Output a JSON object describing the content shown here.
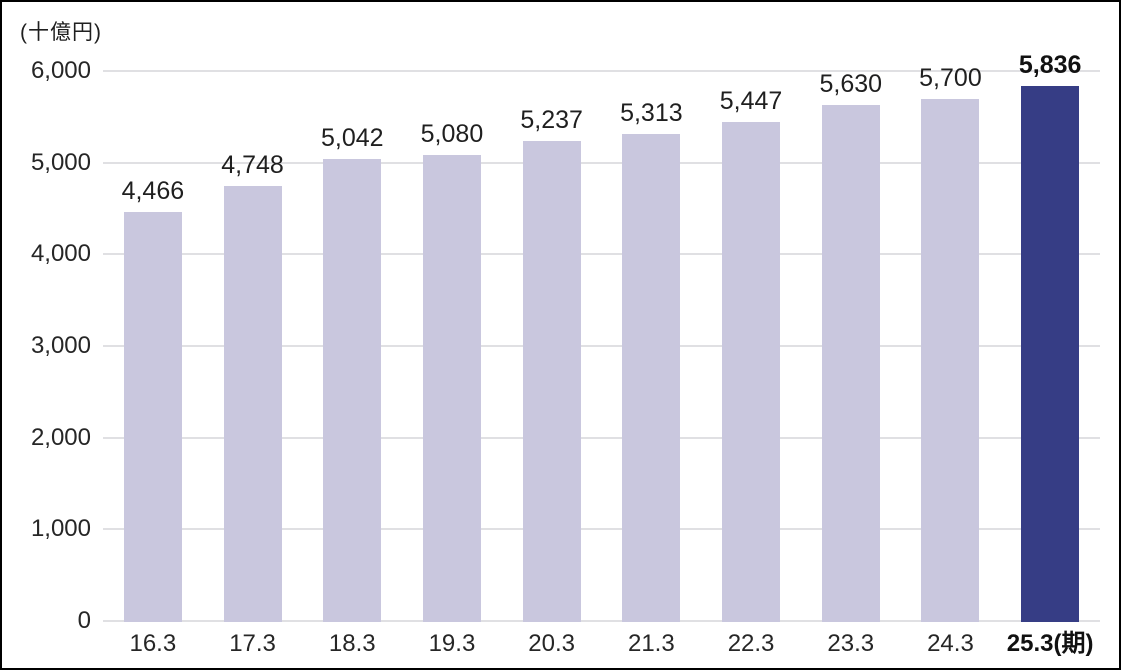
{
  "page": {
    "background_color": "#ffffff",
    "border_color": "#000000"
  },
  "chart_data": {
    "type": "bar",
    "title": "",
    "unit_label": "(十億円)",
    "xlabel": "",
    "ylabel": "十億円",
    "categories": [
      "16.3",
      "17.3",
      "18.3",
      "19.3",
      "20.3",
      "21.3",
      "22.3",
      "23.3",
      "24.3",
      "25.3(期)"
    ],
    "values": [
      4466,
      4748,
      5042,
      5080,
      5237,
      5313,
      5447,
      5630,
      5700,
      5836
    ],
    "value_labels": [
      "4,466",
      "4,748",
      "5,042",
      "5,080",
      "5,237",
      "5,313",
      "5,447",
      "5,630",
      "5,700",
      "5,836"
    ],
    "highlight_index": 9,
    "ylim": [
      0,
      6000
    ],
    "ytick_step": 1000,
    "ytick_labels": [
      "0",
      "1,000",
      "2,000",
      "3,000",
      "4,000",
      "5,000",
      "6,000"
    ],
    "grid": true,
    "legend_position": "none",
    "colors": {
      "bar": "#c9c7de",
      "highlight_bar": "#363d85",
      "gridline": "#e0e0e3",
      "text": "#262626"
    }
  }
}
